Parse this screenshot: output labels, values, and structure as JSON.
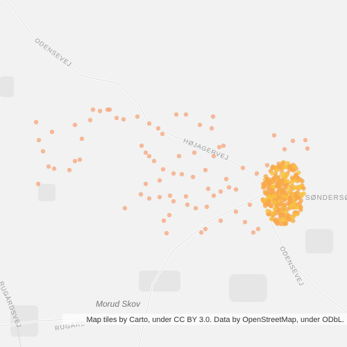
{
  "map": {
    "labels": {
      "odensevej_nw": "ODENSEVEJ",
      "hojagervej": "HØJAGERVEJ",
      "sonderso": "SØNDERSØ",
      "odensevej_se": "ODENSEVEJ",
      "morud_skov": "Morud Skov",
      "rugardsvej_bottom": "RUGÅRDSVEJ",
      "rugardsvej_left": "RUGÅRDSVEJ"
    },
    "attribution": "Map tiles by Carto, under CC BY 3.0. Data by OpenStreetMap, under ODbL."
  }
}
